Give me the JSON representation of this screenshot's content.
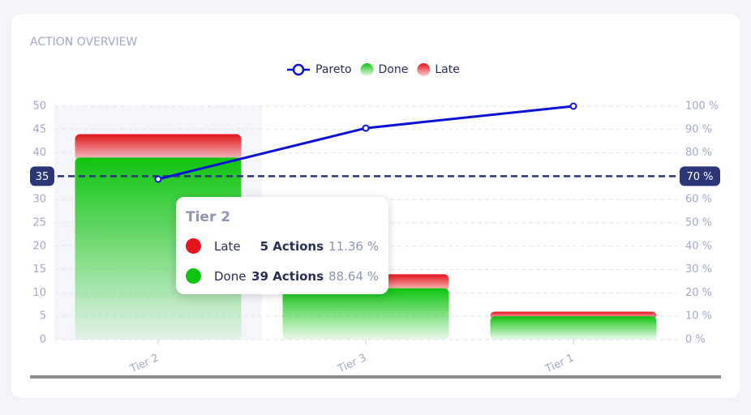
{
  "chart_data": {
    "type": "bar",
    "stacked": true,
    "title": "ACTION OVERVIEW",
    "categories": [
      "Tier 2",
      "Tier 3",
      "Tier 1"
    ],
    "series": [
      {
        "name": "Pareto",
        "type": "line",
        "axis": "y2",
        "color": "#0a12d4",
        "values": [
          68.75,
          90.6,
          100
        ]
      },
      {
        "name": "Done",
        "color": "#0fc40f",
        "values": [
          39,
          11,
          5
        ]
      },
      {
        "name": "Late",
        "color": "#e3141b",
        "values": [
          5,
          3,
          1
        ]
      }
    ],
    "ylim": [
      0,
      50
    ],
    "yticks": [
      0,
      5,
      10,
      15,
      20,
      25,
      30,
      35,
      40,
      45,
      50
    ],
    "y2lim": [
      0,
      100
    ],
    "y2ticks": [
      {
        "value": 0,
        "label": "0 %"
      },
      {
        "value": 10,
        "label": "10 %"
      },
      {
        "value": 20,
        "label": "20 %"
      },
      {
        "value": 30,
        "label": "30 %"
      },
      {
        "value": 40,
        "label": "40 %"
      },
      {
        "value": 50,
        "label": "50 %"
      },
      {
        "value": 60,
        "label": "60 %"
      },
      {
        "value": 70,
        "label": "70 %"
      },
      {
        "value": 80,
        "label": "80 %"
      },
      {
        "value": 90,
        "label": "90 %"
      },
      {
        "value": 100,
        "label": "100 %"
      }
    ],
    "grid": true,
    "legend": "top",
    "reference_line": {
      "value": 35,
      "y2": {
        "value": 70,
        "label": "70 %"
      },
      "color": "#2b3577"
    },
    "tooltip": {
      "title": "Tier 2",
      "rows": [
        {
          "name": "Late",
          "color": "#e3141b",
          "count": "5 Actions",
          "percent": "11.36 %"
        },
        {
          "name": "Done",
          "color": "#0fc40f",
          "count": "39 Actions",
          "percent": "88.64 %"
        }
      ]
    }
  }
}
